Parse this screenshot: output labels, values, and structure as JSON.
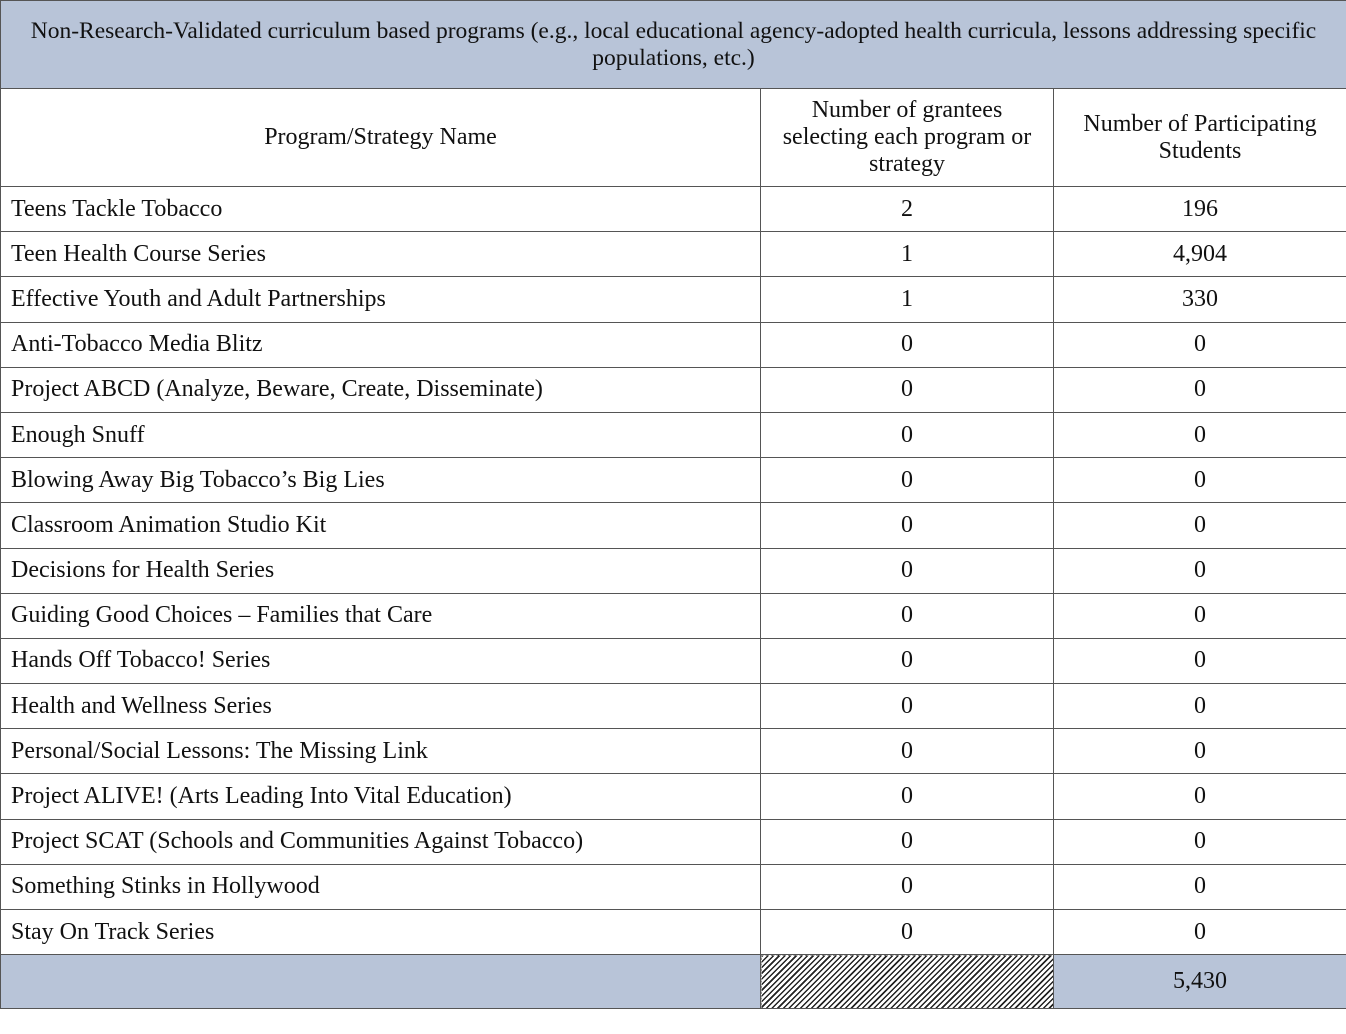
{
  "table": {
    "title": "Non-Research-Validated curriculum based programs (e.g., local educational agency-adopted health curricula, lessons addressing specific populations, etc.)",
    "header": [
      "Program/Strategy Name",
      "Number of grantees selecting each program or strategy",
      "Number of Participating Students"
    ],
    "rows": [
      [
        "Teens Tackle Tobacco",
        "2",
        "196"
      ],
      [
        "Teen Health Course Series",
        "1",
        "4,904"
      ],
      [
        "Effective Youth and Adult Partnerships",
        "1",
        "330"
      ],
      [
        "Anti-Tobacco Media Blitz",
        "0",
        "0"
      ],
      [
        "Project ABCD (Analyze, Beware, Create, Disseminate)",
        "0",
        "0"
      ],
      [
        "Enough Snuff",
        "0",
        "0"
      ],
      [
        "Blowing Away Big Tobacco’s Big Lies",
        "0",
        "0"
      ],
      [
        "Classroom Animation Studio Kit",
        "0",
        "0"
      ],
      [
        "Decisions for Health Series",
        "0",
        "0"
      ],
      [
        "Guiding Good Choices – Families that Care",
        "0",
        "0"
      ],
      [
        "Hands Off Tobacco! Series",
        "0",
        "0"
      ],
      [
        "Health and Wellness Series",
        "0",
        "0"
      ],
      [
        "Personal/Social Lessons: The Missing Link",
        "0",
        "0"
      ],
      [
        "Project ALIVE! (Arts Leading Into Vital Education)",
        "0",
        "0"
      ],
      [
        "Project SCAT (Schools and Communities Against Tobacco)",
        "0",
        "0"
      ],
      [
        "Something Stinks in Hollywood",
        "0",
        "0"
      ],
      [
        "Stay On Track Series",
        "0",
        "0"
      ]
    ],
    "total": "5,430"
  }
}
